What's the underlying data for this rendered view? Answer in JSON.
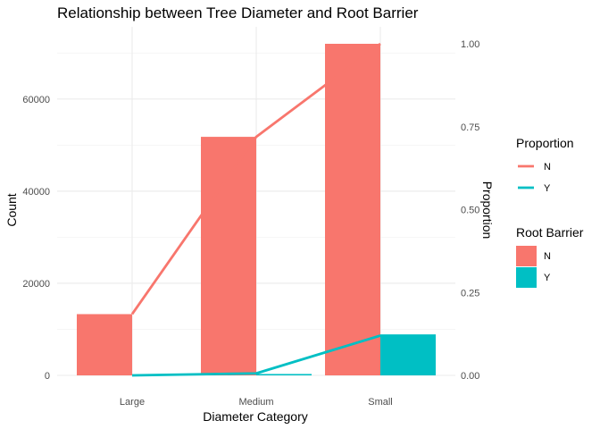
{
  "chart_data": {
    "type": "bar",
    "title": "Relationship between Tree Diameter and Root Barrier",
    "xlabel": "Diameter Category",
    "ylabel": "Count",
    "y2label": "Proportion",
    "categories": [
      "Large",
      "Medium",
      "Small"
    ],
    "ylim": [
      0,
      72000
    ],
    "y2lim": [
      0,
      1
    ],
    "yticks": [
      0,
      20000,
      40000,
      60000
    ],
    "y2ticks": [
      "0.00",
      "0.25",
      "0.50",
      "0.75",
      "1.00"
    ],
    "grid": true,
    "legend_placement": "right",
    "bar_series": [
      {
        "name": "N",
        "color": "#F8766D",
        "values": [
          13300,
          51800,
          72000
        ]
      },
      {
        "name": "Y",
        "color": "#00BFC4",
        "values": [
          0,
          300,
          8900
        ]
      }
    ],
    "line_series": [
      {
        "name": "N",
        "color": "#F8766D",
        "axis": "y",
        "values": [
          13300,
          51800,
          72000
        ]
      },
      {
        "name": "Y",
        "color": "#00BFC4",
        "axis": "y2",
        "values": [
          0.0,
          0.006,
          0.12
        ]
      }
    ],
    "legends": [
      {
        "title": "Proportion",
        "kind": "line",
        "items": [
          {
            "label": "N",
            "color": "#F8766D"
          },
          {
            "label": "Y",
            "color": "#00BFC4"
          }
        ]
      },
      {
        "title": "Root Barrier",
        "kind": "fill",
        "items": [
          {
            "label": "N",
            "color": "#F8766D"
          },
          {
            "label": "Y",
            "color": "#00BFC4"
          }
        ]
      }
    ]
  }
}
